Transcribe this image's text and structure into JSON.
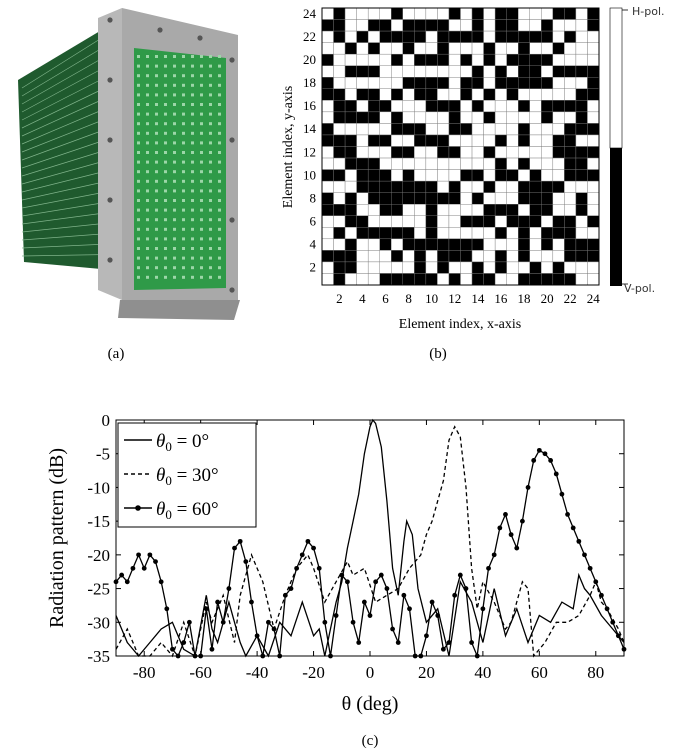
{
  "captions": {
    "a": "(a)",
    "b": "(b)",
    "c": "(c)"
  },
  "panel_b": {
    "xlabel": "Element index, x-axis",
    "ylabel": "Element index, y-axis",
    "ticks": [
      "2",
      "4",
      "6",
      "8",
      "10",
      "12",
      "14",
      "16",
      "18",
      "20",
      "22",
      "24"
    ],
    "colorbar_top": "H-pol.",
    "colorbar_bottom": "V-pol.",
    "grid_size": 24
  },
  "chart_data": {
    "type": "line",
    "xlabel": "θ (deg)",
    "ylabel": "Radiation pattern (dB)",
    "xlim": [
      -90,
      90
    ],
    "ylim": [
      -35,
      0
    ],
    "xticks": [
      -80,
      -60,
      -40,
      -20,
      0,
      20,
      40,
      60,
      80
    ],
    "yticks": [
      0,
      -5,
      -10,
      -15,
      -20,
      -25,
      -30,
      -35
    ],
    "xtick_labels": [
      "-80",
      "-60",
      "-40",
      "-20",
      "0",
      "20",
      "40",
      "60",
      "80"
    ],
    "ytick_labels": [
      "0",
      "-5",
      "-10",
      "-15",
      "-20",
      "-25",
      "-30",
      "-35"
    ],
    "legend_position": "top-left",
    "series": [
      {
        "name": "θ0 = 0°",
        "style": "solid",
        "points": [
          [
            -90,
            -29
          ],
          [
            -86,
            -33
          ],
          [
            -82,
            -35
          ],
          [
            -78,
            -33
          ],
          [
            -74,
            -31
          ],
          [
            -70,
            -30
          ],
          [
            -66,
            -34
          ],
          [
            -62,
            -35
          ],
          [
            -58,
            -26
          ],
          [
            -56,
            -31
          ],
          [
            -54,
            -33
          ],
          [
            -50,
            -27
          ],
          [
            -48,
            -30
          ],
          [
            -46,
            -33
          ],
          [
            -44,
            -35
          ],
          [
            -40,
            -32
          ],
          [
            -36,
            -35
          ],
          [
            -32,
            -30
          ],
          [
            -28,
            -32
          ],
          [
            -24,
            -27
          ],
          [
            -20,
            -32
          ],
          [
            -18,
            -31
          ],
          [
            -16,
            -35
          ],
          [
            -12,
            -27
          ],
          [
            -10,
            -24
          ],
          [
            -8,
            -19
          ],
          [
            -6,
            -15
          ],
          [
            -4,
            -11
          ],
          [
            -2,
            -5
          ],
          [
            0,
            -1
          ],
          [
            1,
            0
          ],
          [
            2,
            -0.5
          ],
          [
            4,
            -4
          ],
          [
            6,
            -12
          ],
          [
            8,
            -22
          ],
          [
            10,
            -26
          ],
          [
            12,
            -18
          ],
          [
            13,
            -15
          ],
          [
            15,
            -17
          ],
          [
            17,
            -25
          ],
          [
            20,
            -30
          ],
          [
            24,
            -28
          ],
          [
            28,
            -35
          ],
          [
            32,
            -24
          ],
          [
            36,
            -27
          ],
          [
            40,
            -33
          ],
          [
            44,
            -25
          ],
          [
            48,
            -32
          ],
          [
            52,
            -28
          ],
          [
            56,
            -33
          ],
          [
            60,
            -29
          ],
          [
            64,
            -30
          ],
          [
            68,
            -27
          ],
          [
            72,
            -28
          ],
          [
            74,
            -23
          ],
          [
            76,
            -25
          ],
          [
            78,
            -26
          ],
          [
            82,
            -29
          ],
          [
            86,
            -31
          ],
          [
            90,
            -33
          ]
        ]
      },
      {
        "name": "θ0 = 30°",
        "style": "dashed",
        "points": [
          [
            -90,
            -34
          ],
          [
            -86,
            -31
          ],
          [
            -82,
            -35
          ],
          [
            -78,
            -35
          ],
          [
            -74,
            -33
          ],
          [
            -70,
            -35
          ],
          [
            -66,
            -30
          ],
          [
            -62,
            -35
          ],
          [
            -58,
            -27
          ],
          [
            -56,
            -30
          ],
          [
            -52,
            -26
          ],
          [
            -48,
            -33
          ],
          [
            -46,
            -26
          ],
          [
            -42,
            -20
          ],
          [
            -38,
            -24
          ],
          [
            -34,
            -31
          ],
          [
            -30,
            -26
          ],
          [
            -26,
            -22
          ],
          [
            -22,
            -20
          ],
          [
            -20,
            -22
          ],
          [
            -16,
            -27
          ],
          [
            -12,
            -24
          ],
          [
            -8,
            -21
          ],
          [
            -6,
            -23
          ],
          [
            -2,
            -22
          ],
          [
            2,
            -27
          ],
          [
            6,
            -26
          ],
          [
            10,
            -25
          ],
          [
            14,
            -22
          ],
          [
            16,
            -21
          ],
          [
            18,
            -20
          ],
          [
            20,
            -17
          ],
          [
            22,
            -15
          ],
          [
            24,
            -12
          ],
          [
            26,
            -9
          ],
          [
            28,
            -3
          ],
          [
            30,
            -1
          ],
          [
            32,
            -2.5
          ],
          [
            34,
            -10
          ],
          [
            36,
            -22
          ],
          [
            38,
            -28
          ],
          [
            40,
            -24
          ],
          [
            44,
            -27
          ],
          [
            48,
            -31
          ],
          [
            50,
            -30
          ],
          [
            54,
            -24
          ],
          [
            56,
            -25
          ],
          [
            58,
            -35
          ],
          [
            62,
            -33
          ],
          [
            66,
            -30
          ],
          [
            70,
            -30
          ],
          [
            74,
            -29
          ],
          [
            78,
            -26
          ],
          [
            80,
            -24
          ],
          [
            82,
            -27
          ],
          [
            84,
            -28
          ],
          [
            88,
            -31
          ],
          [
            90,
            -33
          ]
        ]
      },
      {
        "name": "θ0 = 60°",
        "style": "solid-dot",
        "points": [
          [
            -90,
            -24
          ],
          [
            -88,
            -23
          ],
          [
            -86,
            -24
          ],
          [
            -84,
            -22
          ],
          [
            -82,
            -20
          ],
          [
            -80,
            -22
          ],
          [
            -78,
            -20
          ],
          [
            -76,
            -21
          ],
          [
            -74,
            -24
          ],
          [
            -72,
            -28
          ],
          [
            -70,
            -34
          ],
          [
            -68,
            -35
          ],
          [
            -66,
            -33
          ],
          [
            -64,
            -30
          ],
          [
            -62,
            -35
          ],
          [
            -60,
            -35
          ],
          [
            -58,
            -28
          ],
          [
            -56,
            -34
          ],
          [
            -54,
            -27
          ],
          [
            -52,
            -30
          ],
          [
            -50,
            -25
          ],
          [
            -48,
            -19
          ],
          [
            -46,
            -18
          ],
          [
            -44,
            -21
          ],
          [
            -42,
            -27
          ],
          [
            -40,
            -32
          ],
          [
            -38,
            -35
          ],
          [
            -36,
            -30
          ],
          [
            -34,
            -31
          ],
          [
            -32,
            -35
          ],
          [
            -30,
            -26
          ],
          [
            -28,
            -25
          ],
          [
            -26,
            -22
          ],
          [
            -24,
            -20
          ],
          [
            -22,
            -18
          ],
          [
            -20,
            -19
          ],
          [
            -18,
            -22
          ],
          [
            -16,
            -30
          ],
          [
            -14,
            -35
          ],
          [
            -12,
            -29
          ],
          [
            -10,
            -23
          ],
          [
            -8,
            -24
          ],
          [
            -6,
            -30
          ],
          [
            -4,
            -33
          ],
          [
            -2,
            -27
          ],
          [
            0,
            -29
          ],
          [
            2,
            -24
          ],
          [
            4,
            -23
          ],
          [
            6,
            -25
          ],
          [
            8,
            -31
          ],
          [
            10,
            -33
          ],
          [
            12,
            -26
          ],
          [
            14,
            -28
          ],
          [
            16,
            -35
          ],
          [
            18,
            -35
          ],
          [
            20,
            -32
          ],
          [
            22,
            -27
          ],
          [
            24,
            -29
          ],
          [
            26,
            -34
          ],
          [
            28,
            -33
          ],
          [
            30,
            -26
          ],
          [
            32,
            -23
          ],
          [
            34,
            -25
          ],
          [
            36,
            -33
          ],
          [
            38,
            -35
          ],
          [
            40,
            -28
          ],
          [
            42,
            -22
          ],
          [
            44,
            -20
          ],
          [
            46,
            -16
          ],
          [
            48,
            -14
          ],
          [
            50,
            -17
          ],
          [
            52,
            -19
          ],
          [
            54,
            -15
          ],
          [
            56,
            -10
          ],
          [
            58,
            -6
          ],
          [
            60,
            -4.5
          ],
          [
            62,
            -5
          ],
          [
            64,
            -6
          ],
          [
            66,
            -8
          ],
          [
            68,
            -11
          ],
          [
            70,
            -14
          ],
          [
            72,
            -16
          ],
          [
            74,
            -18
          ],
          [
            76,
            -20
          ],
          [
            78,
            -22
          ],
          [
            80,
            -24
          ],
          [
            82,
            -26
          ],
          [
            84,
            -28
          ],
          [
            86,
            -30
          ],
          [
            88,
            -32
          ],
          [
            90,
            -34
          ]
        ]
      }
    ]
  },
  "legend_text": {
    "l0_pre": "θ",
    "l0_sub": "0",
    "l0_post": " = 0°",
    "l1_pre": "θ",
    "l1_sub": "0",
    "l1_post": " = 30°",
    "l2_pre": "θ",
    "l2_sub": "0",
    "l2_post": " = 60°"
  }
}
